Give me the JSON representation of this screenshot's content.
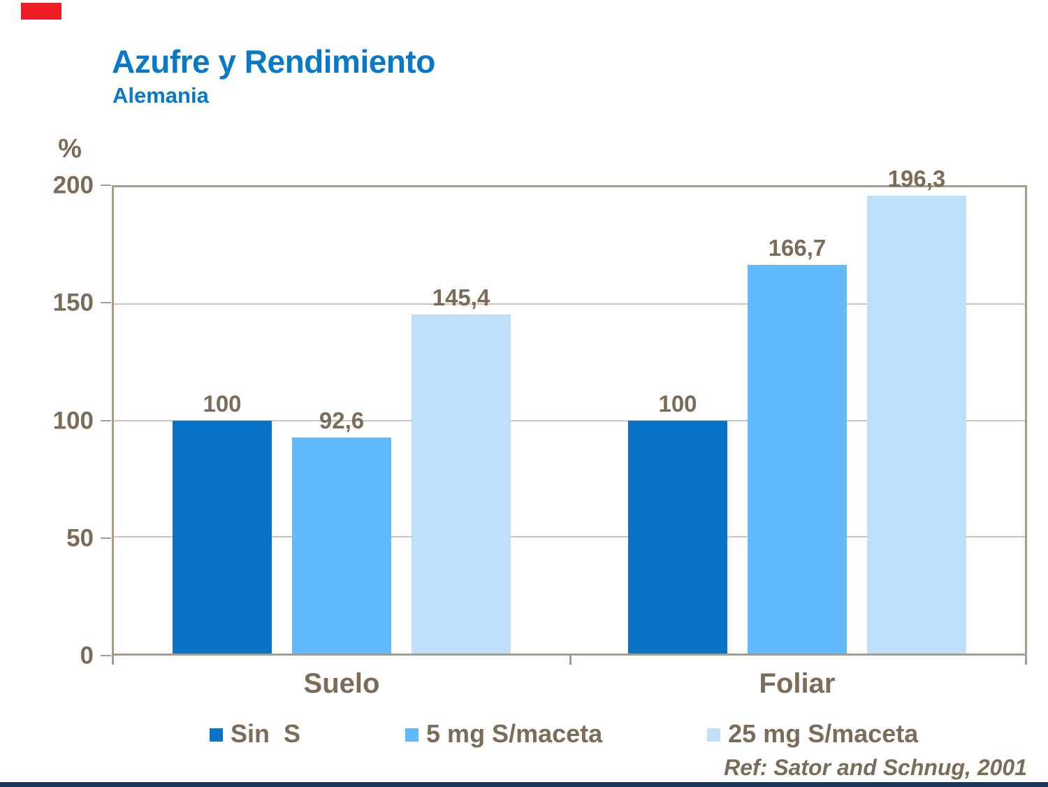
{
  "slide": {
    "title": "Azufre y Rendimiento",
    "subtitle": "Alemania",
    "reference": "Ref: Sator and Schnug, 2001",
    "colors": {
      "title_blue": "#0878C9",
      "text_brown": "#7A6C59",
      "accent_red": "#EE1C25",
      "footer_navy": "#16365C",
      "plot_border_tan": "#A69C8C",
      "gridline_tan": "#CEC6BA"
    }
  },
  "chart_data": {
    "type": "bar",
    "title": "Azufre y Rendimiento",
    "subtitle": "Alemania",
    "unit_label": "%",
    "categories": [
      "Suelo",
      "Foliar"
    ],
    "series": [
      {
        "name": "Sin  S",
        "color": "#0A73C6",
        "values": [
          100,
          100
        ],
        "value_labels": [
          "100",
          "100"
        ]
      },
      {
        "name": "5 mg S/maceta",
        "color": "#62BAFA",
        "values": [
          92.6,
          166.7
        ],
        "value_labels": [
          "92,6",
          "166,7"
        ]
      },
      {
        "name": "25 mg S/maceta",
        "color": "#BEE0FA",
        "values": [
          145.4,
          196.3
        ],
        "value_labels": [
          "145,4",
          "196,3"
        ]
      }
    ],
    "ylim": [
      0,
      200
    ],
    "yticks": [
      0,
      50,
      100,
      150,
      200
    ],
    "grid": true,
    "legend_position": "bottom",
    "annotation": "Ref: Sator and Schnug, 2001"
  }
}
